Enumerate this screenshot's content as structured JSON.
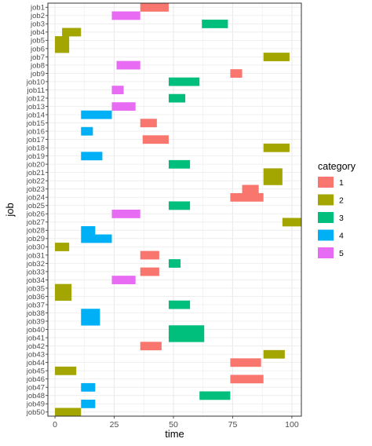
{
  "chart_data": {
    "type": "bar",
    "xlabel": "time",
    "ylabel": "job",
    "xlim": [
      -3,
      104
    ],
    "x_ticks": [
      0,
      25,
      50,
      75,
      100
    ],
    "grid": true,
    "legend": {
      "title": "category",
      "placement": "right",
      "entries": [
        {
          "label": "1",
          "color": "#F8766D"
        },
        {
          "label": "2",
          "color": "#A3A500"
        },
        {
          "label": "3",
          "color": "#00BF7D"
        },
        {
          "label": "4",
          "color": "#00B0F6"
        },
        {
          "label": "5",
          "color": "#E76BF3"
        }
      ]
    },
    "jobs": [
      {
        "job": "job1",
        "start": 36,
        "end": 48,
        "category": "1"
      },
      {
        "job": "job2",
        "start": 24,
        "end": 36,
        "category": "5"
      },
      {
        "job": "job3",
        "start": 62,
        "end": 73,
        "category": "3"
      },
      {
        "job": "job4",
        "start": 3,
        "end": 11,
        "category": "2"
      },
      {
        "job": "job5",
        "start": 0,
        "end": 6,
        "category": "2"
      },
      {
        "job": "job6",
        "start": 0,
        "end": 6,
        "category": "2"
      },
      {
        "job": "job7",
        "start": 88,
        "end": 99,
        "category": "2"
      },
      {
        "job": "job8",
        "start": 26,
        "end": 36,
        "category": "5"
      },
      {
        "job": "job9",
        "start": 74,
        "end": 79,
        "category": "1"
      },
      {
        "job": "job10",
        "start": 48,
        "end": 61,
        "category": "3"
      },
      {
        "job": "job11",
        "start": 24,
        "end": 29,
        "category": "5"
      },
      {
        "job": "job12",
        "start": 48,
        "end": 55,
        "category": "3"
      },
      {
        "job": "job13",
        "start": 24,
        "end": 34,
        "category": "5"
      },
      {
        "job": "job14",
        "start": 11,
        "end": 24,
        "category": "4"
      },
      {
        "job": "job15",
        "start": 36,
        "end": 43,
        "category": "1"
      },
      {
        "job": "job16",
        "start": 11,
        "end": 16,
        "category": "4"
      },
      {
        "job": "job17",
        "start": 37,
        "end": 48,
        "category": "1"
      },
      {
        "job": "job18",
        "start": 88,
        "end": 99,
        "category": "2"
      },
      {
        "job": "job19",
        "start": 11,
        "end": 20,
        "category": "4"
      },
      {
        "job": "job20",
        "start": 48,
        "end": 57,
        "category": "3"
      },
      {
        "job": "job21",
        "start": 88,
        "end": 96,
        "category": "2"
      },
      {
        "job": "job22",
        "start": 88,
        "end": 96,
        "category": "2"
      },
      {
        "job": "job23",
        "start": 79,
        "end": 86,
        "category": "1"
      },
      {
        "job": "job24",
        "start": 74,
        "end": 88,
        "category": "1"
      },
      {
        "job": "job25",
        "start": 48,
        "end": 57,
        "category": "3"
      },
      {
        "job": "job26",
        "start": 24,
        "end": 36,
        "category": "5"
      },
      {
        "job": "job27",
        "start": 96,
        "end": 104,
        "category": "2"
      },
      {
        "job": "job28",
        "start": 11,
        "end": 17,
        "category": "4"
      },
      {
        "job": "job29",
        "start": 11,
        "end": 24,
        "category": "4"
      },
      {
        "job": "job30",
        "start": 0,
        "end": 6,
        "category": "2"
      },
      {
        "job": "job31",
        "start": 36,
        "end": 44,
        "category": "1"
      },
      {
        "job": "job32",
        "start": 48,
        "end": 53,
        "category": "3"
      },
      {
        "job": "job33",
        "start": 36,
        "end": 44,
        "category": "1"
      },
      {
        "job": "job34",
        "start": 24,
        "end": 34,
        "category": "5"
      },
      {
        "job": "job35",
        "start": 0,
        "end": 7,
        "category": "2"
      },
      {
        "job": "job36",
        "start": 0,
        "end": 7,
        "category": "2"
      },
      {
        "job": "job37",
        "start": 48,
        "end": 57,
        "category": "3"
      },
      {
        "job": "job38",
        "start": 11,
        "end": 19,
        "category": "4"
      },
      {
        "job": "job39",
        "start": 11,
        "end": 19,
        "category": "4"
      },
      {
        "job": "job40",
        "start": 48,
        "end": 63,
        "category": "3"
      },
      {
        "job": "job41",
        "start": 48,
        "end": 63,
        "category": "3"
      },
      {
        "job": "job42",
        "start": 36,
        "end": 45,
        "category": "1"
      },
      {
        "job": "job43",
        "start": 88,
        "end": 97,
        "category": "2"
      },
      {
        "job": "job44",
        "start": 74,
        "end": 87,
        "category": "1"
      },
      {
        "job": "job45",
        "start": 0,
        "end": 9,
        "category": "2"
      },
      {
        "job": "job46",
        "start": 74,
        "end": 88,
        "category": "1"
      },
      {
        "job": "job47",
        "start": 11,
        "end": 17,
        "category": "4"
      },
      {
        "job": "job48",
        "start": 61,
        "end": 74,
        "category": "3"
      },
      {
        "job": "job49",
        "start": 11,
        "end": 17,
        "category": "4"
      },
      {
        "job": "job50",
        "start": 0,
        "end": 11,
        "category": "2"
      }
    ]
  }
}
